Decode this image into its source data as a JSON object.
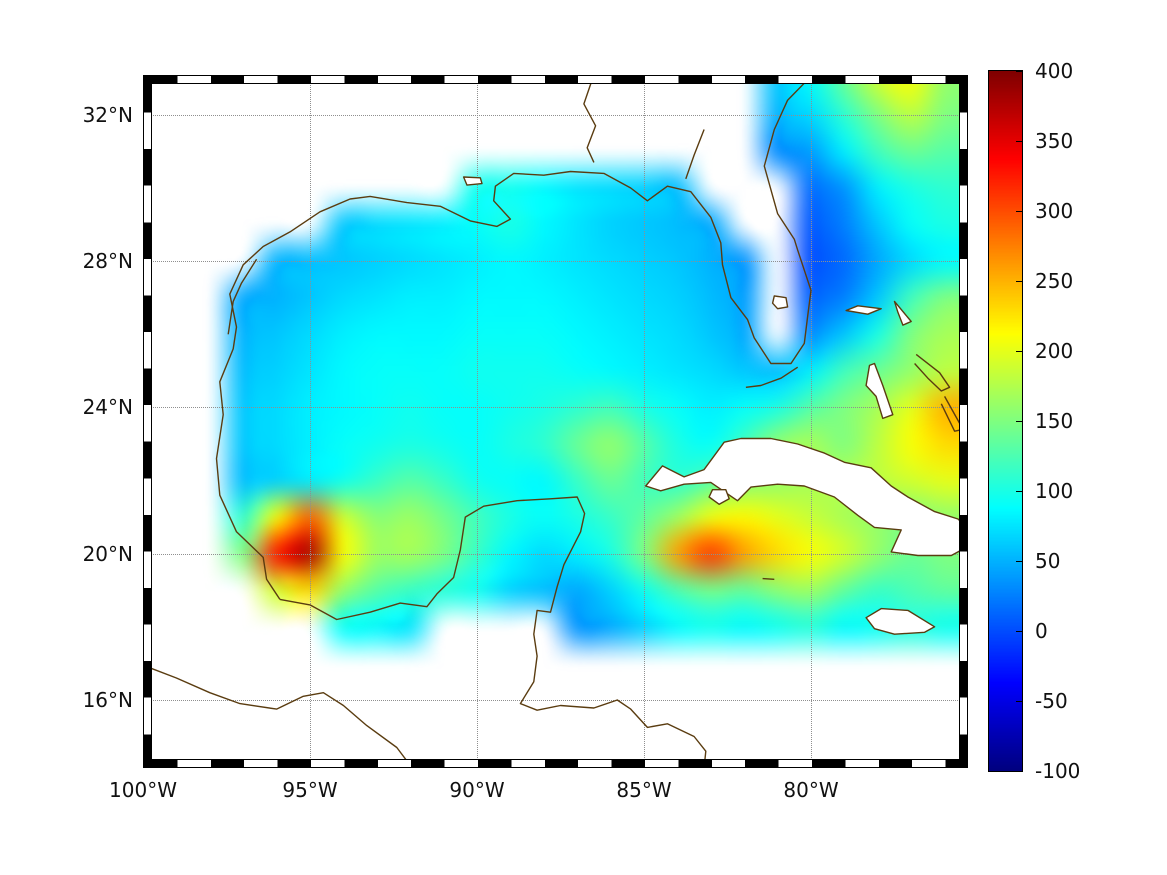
{
  "figure": {
    "background": "#ffffff",
    "axis": {
      "lon_range": [
        -100,
        -75.3
      ],
      "lat_range": [
        14.14,
        33.09
      ],
      "x_ticks": [
        {
          "label": "100°W",
          "lon": -100
        },
        {
          "label": "95°W",
          "lon": -95
        },
        {
          "label": "90°W",
          "lon": -90
        },
        {
          "label": "85°W",
          "lon": -85
        },
        {
          "label": "80°W",
          "lon": -80
        }
      ],
      "y_ticks": [
        {
          "label": "16°N",
          "lat": 16
        },
        {
          "label": "20°N",
          "lat": 20
        },
        {
          "label": "24°N",
          "lat": 24
        },
        {
          "label": "28°N",
          "lat": 28
        },
        {
          "label": "32°N",
          "lat": 32
        }
      ]
    },
    "colorbar": {
      "min": -100,
      "max": 400,
      "ticks": [
        400,
        350,
        300,
        250,
        200,
        150,
        100,
        50,
        0,
        -50,
        -100
      ]
    },
    "colors": {
      "coastline": "#5a3c10",
      "grid": "#8f8f8f",
      "frame": "#000000"
    }
  },
  "chart_data": {
    "type": "heatmap",
    "colormap": "jet",
    "clim": [
      -100,
      400
    ],
    "lon_start": -100,
    "lon_step": 1,
    "lat_start": 33,
    "lat_step": -1,
    "grid": [
      [
        null,
        null,
        null,
        null,
        null,
        null,
        null,
        null,
        null,
        null,
        null,
        null,
        null,
        null,
        null,
        null,
        null,
        null,
        null,
        60,
        90,
        140,
        190,
        210,
        160
      ],
      [
        null,
        null,
        null,
        null,
        null,
        null,
        null,
        null,
        null,
        null,
        null,
        null,
        null,
        null,
        null,
        null,
        null,
        null,
        null,
        50,
        70,
        110,
        150,
        180,
        150
      ],
      [
        null,
        null,
        null,
        null,
        null,
        null,
        null,
        null,
        null,
        null,
        null,
        null,
        null,
        null,
        null,
        null,
        null,
        null,
        null,
        30,
        40,
        80,
        120,
        140,
        130
      ],
      [
        null,
        null,
        null,
        null,
        null,
        null,
        null,
        null,
        null,
        null,
        95,
        95,
        85,
        75,
        70,
        65,
        55,
        null,
        null,
        null,
        15,
        35,
        80,
        100,
        110
      ],
      [
        null,
        null,
        null,
        null,
        null,
        null,
        60,
        70,
        75,
        80,
        90,
        100,
        85,
        75,
        65,
        60,
        55,
        45,
        null,
        null,
        5,
        25,
        60,
        90,
        100
      ],
      [
        null,
        null,
        null,
        null,
        50,
        55,
        60,
        65,
        70,
        75,
        80,
        85,
        80,
        75,
        70,
        65,
        60,
        50,
        35,
        null,
        0,
        15,
        45,
        70,
        85
      ],
      [
        null,
        null,
        null,
        45,
        50,
        60,
        70,
        75,
        80,
        80,
        85,
        85,
        85,
        80,
        75,
        70,
        65,
        55,
        40,
        null,
        10,
        25,
        60,
        120,
        150
      ],
      [
        null,
        null,
        null,
        50,
        60,
        70,
        80,
        85,
        85,
        85,
        90,
        90,
        90,
        85,
        80,
        75,
        70,
        60,
        45,
        null,
        30,
        60,
        100,
        150,
        170
      ],
      [
        null,
        null,
        null,
        55,
        65,
        75,
        85,
        90,
        90,
        90,
        95,
        95,
        95,
        90,
        85,
        80,
        75,
        70,
        60,
        55,
        80,
        120,
        140,
        160,
        180
      ],
      [
        null,
        null,
        null,
        60,
        70,
        80,
        85,
        90,
        95,
        90,
        90,
        95,
        100,
        110,
        120,
        100,
        90,
        80,
        90,
        100,
        130,
        150,
        170,
        200,
        250
      ],
      [
        null,
        null,
        null,
        60,
        70,
        80,
        90,
        95,
        100,
        95,
        90,
        100,
        110,
        140,
        160,
        130,
        100,
        90,
        120,
        160,
        170,
        150,
        180,
        210,
        230
      ],
      [
        null,
        null,
        null,
        55,
        65,
        80,
        95,
        115,
        130,
        115,
        95,
        90,
        85,
        115,
        140,
        120,
        110,
        130,
        150,
        160,
        170,
        175,
        180,
        190,
        200
      ],
      [
        null,
        null,
        null,
        110,
        210,
        290,
        190,
        155,
        165,
        145,
        120,
        100,
        90,
        100,
        115,
        135,
        165,
        205,
        215,
        200,
        185,
        170,
        160,
        150,
        160
      ],
      [
        null,
        null,
        null,
        150,
        330,
        380,
        210,
        165,
        170,
        150,
        115,
        85,
        70,
        80,
        100,
        150,
        260,
        310,
        260,
        230,
        210,
        190,
        160,
        140,
        150
      ],
      [
        null,
        null,
        null,
        null,
        190,
        230,
        160,
        130,
        115,
        105,
        95,
        65,
        55,
        45,
        65,
        95,
        125,
        145,
        135,
        155,
        165,
        135,
        115,
        125,
        135
      ],
      [
        null,
        null,
        null,
        null,
        null,
        null,
        90,
        85,
        75,
        null,
        null,
        null,
        null,
        35,
        45,
        65,
        85,
        95,
        85,
        95,
        105,
        85,
        95,
        105,
        95
      ],
      [
        null,
        null,
        null,
        null,
        null,
        null,
        null,
        null,
        null,
        null,
        null,
        null,
        null,
        null,
        null,
        null,
        null,
        null,
        null,
        null,
        null,
        null,
        null,
        null,
        null
      ],
      [
        null,
        null,
        null,
        null,
        null,
        null,
        null,
        null,
        null,
        null,
        null,
        null,
        null,
        null,
        null,
        null,
        null,
        null,
        null,
        null,
        null,
        null,
        null,
        null,
        null
      ],
      [
        null,
        null,
        null,
        null,
        null,
        null,
        null,
        null,
        null,
        null,
        null,
        null,
        null,
        null,
        null,
        null,
        null,
        null,
        null,
        null,
        null,
        null,
        null,
        null,
        null
      ]
    ],
    "coastlines": {
      "us_gulf_east_coast": [
        [
          -95.9,
          18.75
        ],
        [
          -96.3,
          19.3
        ],
        [
          -96.4,
          19.9
        ],
        [
          -97.2,
          20.6
        ],
        [
          -97.7,
          21.6
        ],
        [
          -97.8,
          22.6
        ],
        [
          -97.6,
          23.8
        ],
        [
          -97.7,
          24.7
        ],
        [
          -97.3,
          25.6
        ],
        [
          -97.2,
          26.2
        ],
        [
          -97.4,
          27.1
        ],
        [
          -97.0,
          27.9
        ],
        [
          -96.4,
          28.4
        ],
        [
          -95.6,
          28.8
        ],
        [
          -94.7,
          29.35
        ],
        [
          -93.8,
          29.7
        ],
        [
          -93.2,
          29.77
        ],
        [
          -92.1,
          29.6
        ],
        [
          -91.1,
          29.5
        ],
        [
          -90.2,
          29.1
        ],
        [
          -89.4,
          28.95
        ],
        [
          -89.0,
          29.15
        ],
        [
          -89.5,
          29.65
        ],
        [
          -89.45,
          30.05
        ],
        [
          -88.9,
          30.4
        ],
        [
          -88.0,
          30.35
        ],
        [
          -87.2,
          30.45
        ],
        [
          -86.2,
          30.4
        ],
        [
          -85.4,
          30.0
        ],
        [
          -84.9,
          29.65
        ],
        [
          -84.3,
          30.05
        ],
        [
          -83.6,
          29.9
        ],
        [
          -83.0,
          29.2
        ],
        [
          -82.7,
          28.5
        ],
        [
          -82.65,
          27.9
        ],
        [
          -82.4,
          27.0
        ],
        [
          -81.9,
          26.4
        ],
        [
          -81.7,
          25.9
        ],
        [
          -81.2,
          25.2
        ],
        [
          -80.6,
          25.2
        ],
        [
          -80.2,
          25.75
        ],
        [
          -80.1,
          26.5
        ],
        [
          -80.0,
          27.2
        ],
        [
          -80.4,
          28.3
        ],
        [
          -80.5,
          28.6
        ],
        [
          -81.0,
          29.3
        ],
        [
          -81.4,
          30.6
        ],
        [
          -81.1,
          31.6
        ],
        [
          -80.7,
          32.4
        ],
        [
          -79.9,
          33.15
        ]
      ],
      "mexico_centam_coast": [
        [
          -95.9,
          18.75
        ],
        [
          -95.0,
          18.6
        ],
        [
          -94.2,
          18.2
        ],
        [
          -93.2,
          18.4
        ],
        [
          -92.3,
          18.65
        ],
        [
          -91.5,
          18.55
        ],
        [
          -91.2,
          18.9
        ],
        [
          -90.7,
          19.35
        ],
        [
          -90.5,
          20.1
        ],
        [
          -90.35,
          21.0
        ],
        [
          -89.8,
          21.3
        ],
        [
          -88.8,
          21.45
        ],
        [
          -87.8,
          21.5
        ],
        [
          -87.0,
          21.55
        ],
        [
          -86.78,
          21.1
        ],
        [
          -86.9,
          20.6
        ],
        [
          -87.4,
          19.7
        ],
        [
          -87.6,
          19.1
        ],
        [
          -87.8,
          18.4
        ],
        [
          -88.2,
          18.45
        ],
        [
          -88.3,
          17.8
        ],
        [
          -88.2,
          17.2
        ],
        [
          -88.3,
          16.5
        ],
        [
          -88.7,
          15.9
        ],
        [
          -88.2,
          15.72
        ],
        [
          -87.5,
          15.85
        ],
        [
          -86.5,
          15.78
        ],
        [
          -85.8,
          16.0
        ],
        [
          -85.4,
          15.75
        ],
        [
          -84.9,
          15.25
        ],
        [
          -84.3,
          15.35
        ],
        [
          -83.5,
          15.0
        ],
        [
          -83.15,
          14.6
        ],
        [
          -83.2,
          14.15
        ]
      ],
      "pacific_coast": [
        [
          -100.0,
          16.95
        ],
        [
          -99.0,
          16.6
        ],
        [
          -98.0,
          16.2
        ],
        [
          -97.1,
          15.9
        ],
        [
          -96.0,
          15.75
        ],
        [
          -95.2,
          16.1
        ],
        [
          -94.6,
          16.2
        ],
        [
          -94.0,
          15.85
        ],
        [
          -93.3,
          15.3
        ],
        [
          -92.4,
          14.7
        ],
        [
          -91.95,
          14.15
        ]
      ],
      "texas_lagoon": [
        [
          -97.45,
          26.0
        ],
        [
          -97.3,
          26.9
        ],
        [
          -97.05,
          27.4
        ],
        [
          -96.6,
          28.05
        ]
      ],
      "lake_pontchartrain": [
        [
          -90.4,
          30.3
        ],
        [
          -89.9,
          30.28
        ],
        [
          -89.85,
          30.12
        ],
        [
          -90.3,
          30.08
        ],
        [
          -90.4,
          30.3
        ]
      ],
      "alabama_river": [
        [
          -86.5,
          33.1
        ],
        [
          -86.8,
          32.3
        ],
        [
          -86.45,
          31.7
        ],
        [
          -86.7,
          31.1
        ],
        [
          -86.5,
          30.7
        ]
      ],
      "suwannee_river": [
        [
          -83.2,
          31.6
        ],
        [
          -83.5,
          30.9
        ],
        [
          -83.75,
          30.25
        ]
      ],
      "lake_okeechobee": [
        [
          -81.1,
          27.05
        ],
        [
          -80.75,
          27.0
        ],
        [
          -80.7,
          26.75
        ],
        [
          -81.0,
          26.7
        ],
        [
          -81.15,
          26.85
        ],
        [
          -81.1,
          27.05
        ]
      ],
      "florida_keys": [
        [
          -80.4,
          25.1
        ],
        [
          -80.9,
          24.8
        ],
        [
          -81.5,
          24.6
        ],
        [
          -81.95,
          24.55
        ]
      ],
      "cuba": [
        [
          -84.95,
          21.85
        ],
        [
          -84.45,
          22.4
        ],
        [
          -83.8,
          22.1
        ],
        [
          -83.2,
          22.3
        ],
        [
          -82.6,
          23.05
        ],
        [
          -82.1,
          23.15
        ],
        [
          -81.2,
          23.15
        ],
        [
          -80.4,
          23.0
        ],
        [
          -79.6,
          22.75
        ],
        [
          -79.0,
          22.5
        ],
        [
          -78.2,
          22.35
        ],
        [
          -77.6,
          21.85
        ],
        [
          -77.1,
          21.55
        ],
        [
          -76.3,
          21.15
        ],
        [
          -75.6,
          20.95
        ],
        [
          -75.32,
          20.7
        ],
        [
          -75.4,
          20.15
        ],
        [
          -75.8,
          19.95
        ],
        [
          -76.8,
          19.95
        ],
        [
          -77.6,
          20.05
        ],
        [
          -77.3,
          20.65
        ],
        [
          -78.1,
          20.72
        ],
        [
          -78.6,
          21.05
        ],
        [
          -79.3,
          21.55
        ],
        [
          -80.2,
          21.85
        ],
        [
          -81.0,
          21.9
        ],
        [
          -81.8,
          21.82
        ],
        [
          -82.2,
          21.45
        ],
        [
          -83.0,
          21.95
        ],
        [
          -83.8,
          21.9
        ],
        [
          -84.5,
          21.72
        ],
        [
          -84.95,
          21.85
        ]
      ],
      "isla_juventud": [
        [
          -82.95,
          21.75
        ],
        [
          -82.55,
          21.75
        ],
        [
          -82.45,
          21.5
        ],
        [
          -82.75,
          21.35
        ],
        [
          -83.05,
          21.55
        ],
        [
          -82.95,
          21.75
        ]
      ],
      "jamaica": [
        [
          -78.35,
          18.25
        ],
        [
          -77.9,
          18.5
        ],
        [
          -77.1,
          18.45
        ],
        [
          -76.3,
          18.0
        ],
        [
          -76.6,
          17.85
        ],
        [
          -77.5,
          17.8
        ],
        [
          -78.1,
          17.95
        ],
        [
          -78.35,
          18.25
        ]
      ],
      "cayman": [
        [
          -81.45,
          19.32
        ],
        [
          -81.1,
          19.3
        ]
      ],
      "grand_bahama": [
        [
          -78.95,
          26.65
        ],
        [
          -78.3,
          26.55
        ],
        [
          -77.9,
          26.7
        ],
        [
          -78.6,
          26.78
        ],
        [
          -78.95,
          26.65
        ]
      ],
      "abaco": [
        [
          -77.5,
          26.9
        ],
        [
          -77.0,
          26.35
        ],
        [
          -77.25,
          26.25
        ],
        [
          -77.4,
          26.6
        ],
        [
          -77.5,
          26.9
        ]
      ],
      "andros": [
        [
          -78.1,
          25.2
        ],
        [
          -77.85,
          24.6
        ],
        [
          -77.55,
          23.8
        ],
        [
          -77.85,
          23.7
        ],
        [
          -78.05,
          24.3
        ],
        [
          -78.35,
          24.6
        ],
        [
          -78.25,
          25.15
        ],
        [
          -78.1,
          25.2
        ]
      ],
      "eleuthera_exuma": [
        [
          -76.85,
          25.45
        ],
        [
          -76.15,
          24.95
        ],
        [
          -75.85,
          24.55
        ],
        [
          -76.1,
          24.45
        ],
        [
          -76.5,
          24.8
        ],
        [
          -76.9,
          25.2
        ]
      ],
      "long_island": [
        [
          -76.0,
          24.3
        ],
        [
          -75.45,
          23.4
        ],
        [
          -75.7,
          23.35
        ],
        [
          -76.1,
          24.1
        ]
      ]
    }
  }
}
